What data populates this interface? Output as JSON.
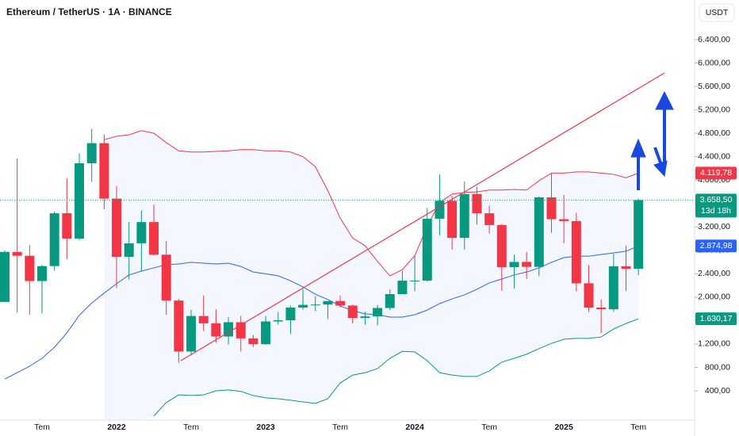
{
  "chart_data": {
    "type": "candlestick",
    "title": "Ethereum / TetherUS · 1A · BINANCE",
    "unit": "USDT",
    "categories": [
      null,
      null,
      null,
      "Tem",
      null,
      null,
      null,
      null,
      null,
      "2022",
      null,
      null,
      null,
      null,
      null,
      "Tem",
      null,
      null,
      null,
      null,
      null,
      "2023",
      null,
      null,
      null,
      null,
      null,
      "Tem",
      null,
      null,
      null,
      null,
      null,
      "2024",
      null,
      null,
      null,
      null,
      null,
      "Tem",
      null,
      null,
      null,
      null,
      null,
      "2025",
      null,
      null,
      null,
      null,
      null,
      "Tem"
    ],
    "open": [
      1919,
      2773,
      2707,
      2275,
      2531,
      3433,
      3001,
      4288,
      4631,
      3683,
      2688,
      2920,
      3283,
      2726,
      1942,
      1071,
      1678,
      1553,
      1328,
      1572,
      1296,
      1196,
      1585,
      1605,
      1822,
      1869,
      1874,
      1934,
      1857,
      1645,
      1671,
      1815,
      2052,
      2282,
      2283,
      3340,
      3647,
      3013,
      3762,
      3433,
      3232,
      2513,
      2602,
      2518,
      3705,
      3332,
      3300,
      2237,
      1822,
      1793,
      2528,
      2486
    ],
    "high": [
      2797,
      4372,
      2891,
      2551,
      3466,
      4027,
      4460,
      4878,
      4778,
      3900,
      3283,
      3482,
      3580,
      2960,
      1972,
      1785,
      2030,
      1790,
      1662,
      1680,
      1352,
      1680,
      1743,
      1857,
      2141,
      2017,
      1930,
      2029,
      1875,
      1750,
      1866,
      2135,
      2446,
      2717,
      3523,
      4093,
      3730,
      3977,
      3887,
      3563,
      3250,
      2728,
      2770,
      3720,
      4109,
      3745,
      3440,
      2550,
      1955,
      2738,
      2880,
      3683
    ],
    "low": [
      1935,
      1735,
      1700,
      1719,
      2453,
      2651,
      2970,
      3971,
      3503,
      2159,
      2300,
      2450,
      2710,
      1700,
      880,
      1003,
      1422,
      1220,
      1190,
      1073,
      1150,
      1190,
      1530,
      1370,
      1785,
      1760,
      1626,
      1822,
      1550,
      1530,
      1520,
      1780,
      2047,
      2100,
      2265,
      3056,
      2812,
      2815,
      3240,
      3087,
      2111,
      2150,
      2310,
      2357,
      3100,
      2920,
      2100,
      1750,
      1385,
      1750,
      2110,
      2373
    ],
    "close": [
      2773,
      2707,
      2275,
      2531,
      3433,
      3001,
      4288,
      4631,
      3683,
      2688,
      2920,
      3283,
      2726,
      1942,
      1071,
      1678,
      1553,
      1328,
      1572,
      1296,
      1196,
      1585,
      1605,
      1822,
      1869,
      1874,
      1934,
      1857,
      1645,
      1671,
      1815,
      2052,
      2282,
      2283,
      3340,
      3647,
      3013,
      3762,
      3433,
      3232,
      2513,
      2602,
      2518,
      3705,
      3332,
      3300,
      2237,
      1822,
      1793,
      2528,
      2486,
      3658.5
    ],
    "last_label": "3.658,50",
    "countdown": "13d 18h",
    "up_color": "#089981",
    "down_color": "#f23645",
    "bands": [
      {
        "color": "#f23645",
        "last_label": "4.119,78",
        "values": [
          null,
          null,
          null,
          null,
          null,
          null,
          null,
          null,
          4690,
          4750,
          4775,
          4845,
          4800,
          4640,
          4500,
          4480,
          4480,
          4490,
          4500,
          4520,
          4520,
          4500,
          4500,
          4480,
          4400,
          4230,
          3820,
          3350,
          3010,
          2880,
          2610,
          2365,
          2470,
          2710,
          3210,
          3620,
          3760,
          3790,
          3800,
          3830,
          3830,
          3840,
          3830,
          3990,
          4120,
          4120,
          4140,
          4140,
          4120,
          4100,
          4040,
          4119.78
        ]
      },
      {
        "color": "#2962ff",
        "last_label": "2.874,98",
        "values": [
          600,
          710,
          820,
          955,
          1145,
          1390,
          1690,
          1900,
          2070,
          2230,
          2380,
          2445,
          2500,
          2555,
          2567,
          2595,
          2580,
          2567,
          2580,
          2525,
          2430,
          2400,
          2365,
          2280,
          2175,
          2050,
          1960,
          1850,
          1770,
          1715,
          1700,
          1660,
          1660,
          1700,
          1780,
          1890,
          1970,
          2040,
          2135,
          2245,
          2310,
          2380,
          2430,
          2500,
          2595,
          2675,
          2700,
          2700,
          2730,
          2755,
          2785,
          2874.98
        ]
      },
      {
        "color": "#089981",
        "last_label": "1.630,17",
        "values": [
          null,
          null,
          null,
          null,
          null,
          null,
          null,
          null,
          null,
          null,
          null,
          null,
          -30,
          200,
          330,
          320,
          330,
          400,
          415,
          390,
          320,
          280,
          265,
          240,
          210,
          185,
          265,
          535,
          670,
          710,
          780,
          955,
          1075,
          1065,
          915,
          710,
          670,
          645,
          645,
          740,
          890,
          955,
          1025,
          1120,
          1210,
          1280,
          1295,
          1295,
          1320,
          1455,
          1550,
          1630.17
        ]
      }
    ],
    "band_fill": "#2962ff",
    "ylim": [
      -101,
      7077
    ],
    "yticks": [
      {
        "value": 400,
        "label": "400,00"
      },
      {
        "value": 800,
        "label": "800,00"
      },
      {
        "value": 1200,
        "label": "1.200,00"
      },
      {
        "value": 1600,
        "label": "1.600,00"
      },
      {
        "value": 2000,
        "label": "2.000,00"
      },
      {
        "value": 2400,
        "label": "2.400,00"
      },
      {
        "value": 2800,
        "label": "2.800,00"
      },
      {
        "value": 3200,
        "label": "3.200,00"
      },
      {
        "value": 3600,
        "label": "3.600,00"
      },
      {
        "value": 4000,
        "label": "4.000,00"
      },
      {
        "value": 4400,
        "label": "4.400,00"
      },
      {
        "value": 4800,
        "label": "4.800,00"
      },
      {
        "value": 5200,
        "label": "5.200,00"
      },
      {
        "value": 5600,
        "label": "5.600,00"
      },
      {
        "value": 6000,
        "label": "6.000,00"
      },
      {
        "value": 6400,
        "label": "6.400,00"
      }
    ],
    "grid": false
  }
}
